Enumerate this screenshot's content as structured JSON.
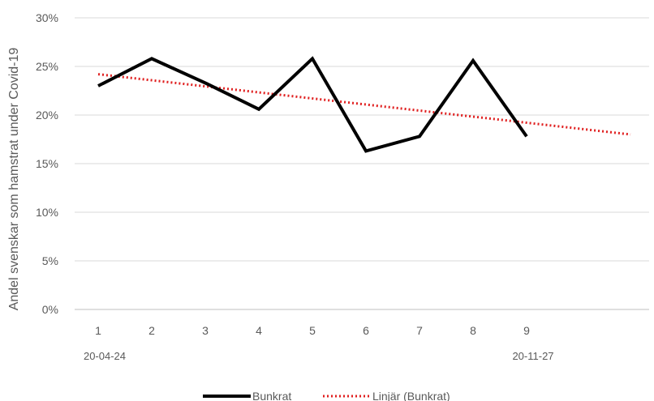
{
  "chart_data": {
    "type": "line",
    "ylabel": "Andel svenskar som hamstrat under Covid-19",
    "categories": [
      "1",
      "2",
      "3",
      "4",
      "5",
      "6",
      "7",
      "8",
      "9"
    ],
    "sublabels": [
      {
        "index": 0,
        "text": "20-04-24"
      },
      {
        "index": 8,
        "text": "20-11-27"
      }
    ],
    "yticks": [
      "0%",
      "5%",
      "10%",
      "15%",
      "20%",
      "25%",
      "30%"
    ],
    "ylim": [
      0,
      30
    ],
    "grid": true,
    "legend_position": "bottom",
    "series": [
      {
        "name": "Bunkrat",
        "values": [
          23.0,
          25.8,
          23.3,
          20.6,
          25.8,
          16.3,
          17.8,
          25.6,
          17.8
        ],
        "color": "#000000",
        "style": "solid"
      }
    ],
    "trendline": {
      "name": "Linjär (Bunkrat)",
      "start": 24.2,
      "end": 18.0,
      "extend_to_category": 11,
      "color": "#e02020",
      "style": "dotted"
    }
  }
}
